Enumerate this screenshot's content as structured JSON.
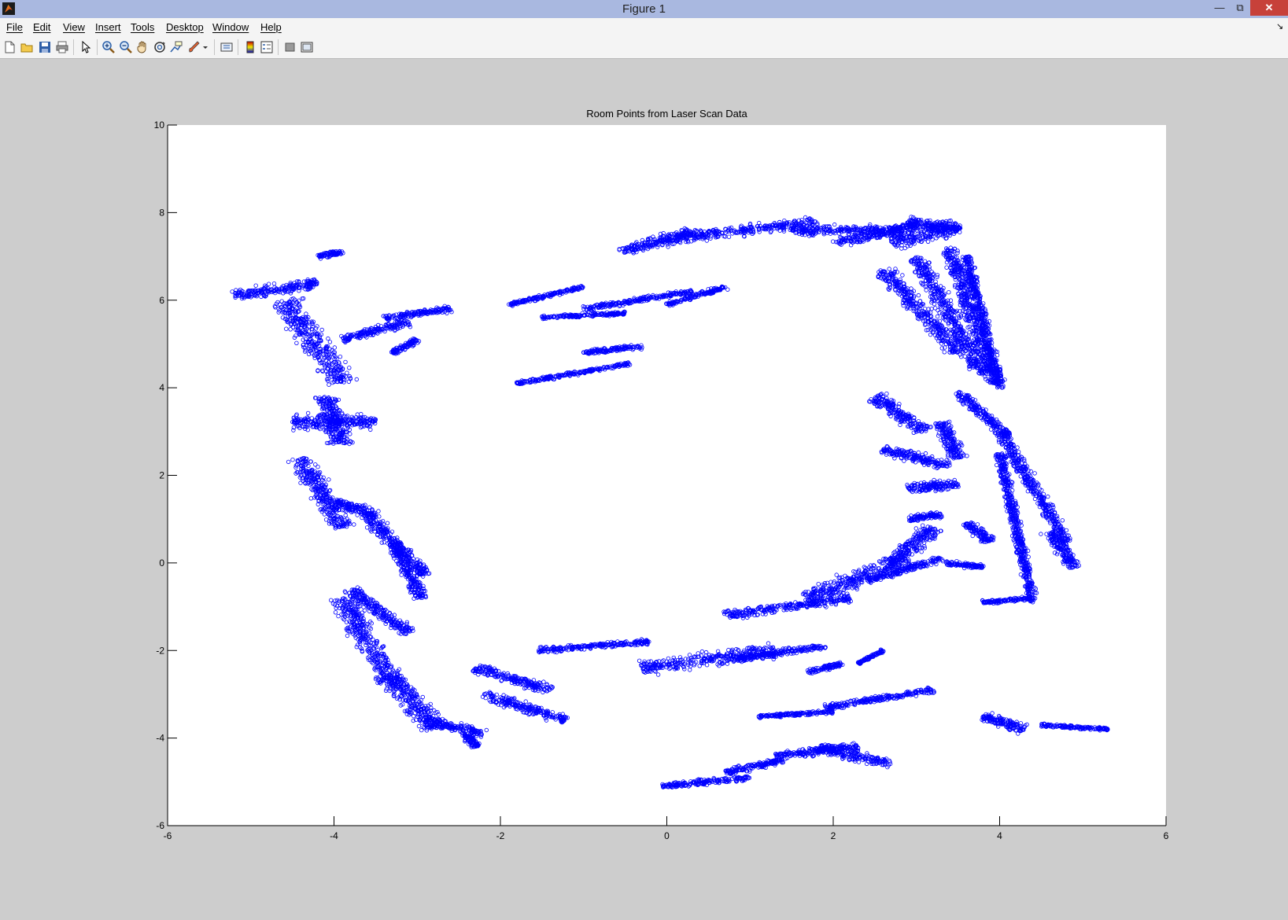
{
  "window": {
    "title": "Figure 1",
    "min_label": "—",
    "max_label": "⧉",
    "close_label": "✕"
  },
  "menu": [
    "File",
    "Edit",
    "View",
    "Insert",
    "Tools",
    "Desktop",
    "Window",
    "Help"
  ],
  "menu_dock": "↘",
  "toolbar": {
    "icons": [
      "new-figure-icon",
      "open-file-icon",
      "save-icon",
      "print-icon",
      "pointer-icon",
      "zoom-in-icon",
      "zoom-out-icon",
      "pan-hand-icon",
      "rotate-3d-icon",
      "data-cursor-icon",
      "brush-icon",
      "link-plot-icon",
      "colorbar-icon",
      "legend-icon",
      "hide-plot-tools-icon",
      "show-plot-tools-icon"
    ]
  },
  "chart_data": {
    "type": "scatter",
    "title": "Room Points from Laser Scan Data",
    "xlabel": "",
    "ylabel": "",
    "xlim": [
      -6,
      6
    ],
    "ylim": [
      -6,
      10
    ],
    "xticks": [
      "-6",
      "-4",
      "-2",
      "0",
      "2",
      "4",
      "6"
    ],
    "yticks": [
      "-6",
      "-4",
      "-2",
      "0",
      "2",
      "4",
      "6",
      "8",
      "10"
    ],
    "grid": false,
    "marker": "o",
    "marker_color": "#0000ff",
    "clusters": [
      {
        "x1": -5.2,
        "y1": 6.1,
        "x2": -4.2,
        "y2": 6.4,
        "width": 0.35
      },
      {
        "x1": -4.6,
        "y1": 6.0,
        "x2": -3.9,
        "y2": 4.1,
        "width": 0.5
      },
      {
        "x1": -4.2,
        "y1": 7.0,
        "x2": -3.9,
        "y2": 7.1,
        "width": 0.15
      },
      {
        "x1": -4.5,
        "y1": 3.2,
        "x2": -3.5,
        "y2": 3.2,
        "width": 0.5
      },
      {
        "x1": -4.1,
        "y1": 3.8,
        "x2": -3.9,
        "y2": 2.7,
        "width": 0.4
      },
      {
        "x1": -4.4,
        "y1": 2.4,
        "x2": -3.9,
        "y2": 0.8,
        "width": 0.4
      },
      {
        "x1": -4.0,
        "y1": 1.4,
        "x2": -3.5,
        "y2": 1.1,
        "width": 0.3
      },
      {
        "x1": -3.6,
        "y1": 1.1,
        "x2": -2.9,
        "y2": -0.3,
        "width": 0.3
      },
      {
        "x1": -3.3,
        "y1": 0.5,
        "x2": -2.95,
        "y2": -0.8,
        "width": 0.25
      },
      {
        "x1": -3.9,
        "y1": 5.1,
        "x2": -3.1,
        "y2": 5.5,
        "width": 0.25
      },
      {
        "x1": -3.4,
        "y1": 5.6,
        "x2": -2.6,
        "y2": 5.8,
        "width": 0.2
      },
      {
        "x1": -3.3,
        "y1": 4.8,
        "x2": -3.0,
        "y2": 5.1,
        "width": 0.15
      },
      {
        "x1": -3.8,
        "y1": -0.6,
        "x2": -3.1,
        "y2": -1.6,
        "width": 0.3
      },
      {
        "x1": -3.9,
        "y1": -0.8,
        "x2": -3.3,
        "y2": -2.8,
        "width": 0.45
      },
      {
        "x1": -3.3,
        "y1": -2.6,
        "x2": -2.8,
        "y2": -3.8,
        "width": 0.45
      },
      {
        "x1": -2.9,
        "y1": -3.6,
        "x2": -2.2,
        "y2": -3.9,
        "width": 0.25
      },
      {
        "x1": -2.4,
        "y1": -3.9,
        "x2": -2.3,
        "y2": -4.2,
        "width": 0.2
      },
      {
        "x1": -2.3,
        "y1": -2.4,
        "x2": -1.4,
        "y2": -2.9,
        "width": 0.3
      },
      {
        "x1": -2.2,
        "y1": -3.0,
        "x2": -1.2,
        "y2": -3.6,
        "width": 0.3
      },
      {
        "x1": -1.55,
        "y1": -2.0,
        "x2": -0.2,
        "y2": -1.8,
        "width": 0.18
      },
      {
        "x1": -0.3,
        "y1": -2.4,
        "x2": 1.3,
        "y2": -2.0,
        "width": 0.45
      },
      {
        "x1": 0.8,
        "y1": -2.2,
        "x2": 1.9,
        "y2": -1.9,
        "width": 0.2
      },
      {
        "x1": 1.7,
        "y1": -2.5,
        "x2": 2.1,
        "y2": -2.3,
        "width": 0.15
      },
      {
        "x1": 2.3,
        "y1": -2.3,
        "x2": 2.6,
        "y2": -2.0,
        "width": 0.08
      },
      {
        "x1": 1.1,
        "y1": -3.5,
        "x2": 2.0,
        "y2": -3.4,
        "width": 0.12
      },
      {
        "x1": 1.9,
        "y1": -3.3,
        "x2": 3.2,
        "y2": -2.9,
        "width": 0.18
      },
      {
        "x1": 1.3,
        "y1": -4.4,
        "x2": 2.3,
        "y2": -4.2,
        "width": 0.25
      },
      {
        "x1": 1.8,
        "y1": -4.2,
        "x2": 2.7,
        "y2": -4.6,
        "width": 0.3
      },
      {
        "x1": -0.05,
        "y1": -5.1,
        "x2": 1.0,
        "y2": -4.9,
        "width": 0.18
      },
      {
        "x1": 0.7,
        "y1": -4.8,
        "x2": 1.4,
        "y2": -4.5,
        "width": 0.2
      },
      {
        "x1": 0.7,
        "y1": -1.2,
        "x2": 2.2,
        "y2": -0.8,
        "width": 0.3
      },
      {
        "x1": 1.7,
        "y1": -0.8,
        "x2": 2.9,
        "y2": 0.1,
        "width": 0.5
      },
      {
        "x1": 2.7,
        "y1": 0.0,
        "x2": 3.2,
        "y2": 0.8,
        "width": 0.4
      },
      {
        "x1": 2.4,
        "y1": -0.4,
        "x2": 3.3,
        "y2": 0.1,
        "width": 0.2
      },
      {
        "x1": 2.5,
        "y1": 3.8,
        "x2": 3.1,
        "y2": 3.0,
        "width": 0.35
      },
      {
        "x1": 2.6,
        "y1": 2.6,
        "x2": 3.4,
        "y2": 2.2,
        "width": 0.3
      },
      {
        "x1": 2.9,
        "y1": 1.7,
        "x2": 3.5,
        "y2": 1.8,
        "width": 0.3
      },
      {
        "x1": 2.9,
        "y1": 1.0,
        "x2": 3.3,
        "y2": 1.1,
        "width": 0.2
      },
      {
        "x1": 3.3,
        "y1": 3.2,
        "x2": 3.5,
        "y2": 2.4,
        "width": 0.3
      },
      {
        "x1": 3.5,
        "y1": 3.9,
        "x2": 4.1,
        "y2": 2.9,
        "width": 0.25
      },
      {
        "x1": 4.0,
        "y1": 3.0,
        "x2": 4.8,
        "y2": 0.5,
        "width": 0.25
      },
      {
        "x1": 4.6,
        "y1": 0.7,
        "x2": 4.9,
        "y2": -0.1,
        "width": 0.25
      },
      {
        "x1": 4.0,
        "y1": 2.5,
        "x2": 4.4,
        "y2": -0.9,
        "width": 0.18
      },
      {
        "x1": 3.8,
        "y1": -0.9,
        "x2": 4.4,
        "y2": -0.8,
        "width": 0.12
      },
      {
        "x1": 3.6,
        "y1": 0.9,
        "x2": 3.9,
        "y2": 0.5,
        "width": 0.25
      },
      {
        "x1": 3.35,
        "y1": 0.0,
        "x2": 3.8,
        "y2": -0.1,
        "width": 0.15
      },
      {
        "x1": 3.8,
        "y1": -3.5,
        "x2": 4.3,
        "y2": -3.8,
        "width": 0.3
      },
      {
        "x1": 4.5,
        "y1": -3.7,
        "x2": 5.3,
        "y2": -3.8,
        "width": 0.12
      },
      {
        "x1": -1.9,
        "y1": 5.9,
        "x2": -1.0,
        "y2": 6.3,
        "width": 0.12
      },
      {
        "x1": -1.5,
        "y1": 5.6,
        "x2": -0.5,
        "y2": 5.7,
        "width": 0.12
      },
      {
        "x1": -1.0,
        "y1": 5.8,
        "x2": 0.3,
        "y2": 6.2,
        "width": 0.15
      },
      {
        "x1": 0.0,
        "y1": 5.9,
        "x2": 0.7,
        "y2": 6.3,
        "width": 0.15
      },
      {
        "x1": -1.8,
        "y1": 4.1,
        "x2": -0.45,
        "y2": 4.55,
        "width": 0.12
      },
      {
        "x1": -1.0,
        "y1": 4.8,
        "x2": -0.3,
        "y2": 4.95,
        "width": 0.15
      },
      {
        "x1": -0.55,
        "y1": 7.1,
        "x2": 0.3,
        "y2": 7.55,
        "width": 0.35
      },
      {
        "x1": 0.1,
        "y1": 7.4,
        "x2": 1.8,
        "y2": 7.8,
        "width": 0.35
      },
      {
        "x1": 1.5,
        "y1": 7.6,
        "x2": 2.8,
        "y2": 7.6,
        "width": 0.3
      },
      {
        "x1": 2.0,
        "y1": 7.3,
        "x2": 3.0,
        "y2": 7.7,
        "width": 0.3
      },
      {
        "x1": 2.7,
        "y1": 7.3,
        "x2": 3.5,
        "y2": 7.7,
        "width": 0.5
      },
      {
        "x1": 2.9,
        "y1": 7.8,
        "x2": 3.5,
        "y2": 7.6,
        "width": 0.3
      },
      {
        "x1": 2.6,
        "y1": 6.7,
        "x2": 3.5,
        "y2": 4.8,
        "width": 0.35
      },
      {
        "x1": 3.0,
        "y1": 7.0,
        "x2": 3.8,
        "y2": 4.3,
        "width": 0.35
      },
      {
        "x1": 3.4,
        "y1": 7.2,
        "x2": 3.95,
        "y2": 4.1,
        "width": 0.3
      },
      {
        "x1": 3.6,
        "y1": 7.0,
        "x2": 4.0,
        "y2": 4.0,
        "width": 0.2
      }
    ]
  }
}
